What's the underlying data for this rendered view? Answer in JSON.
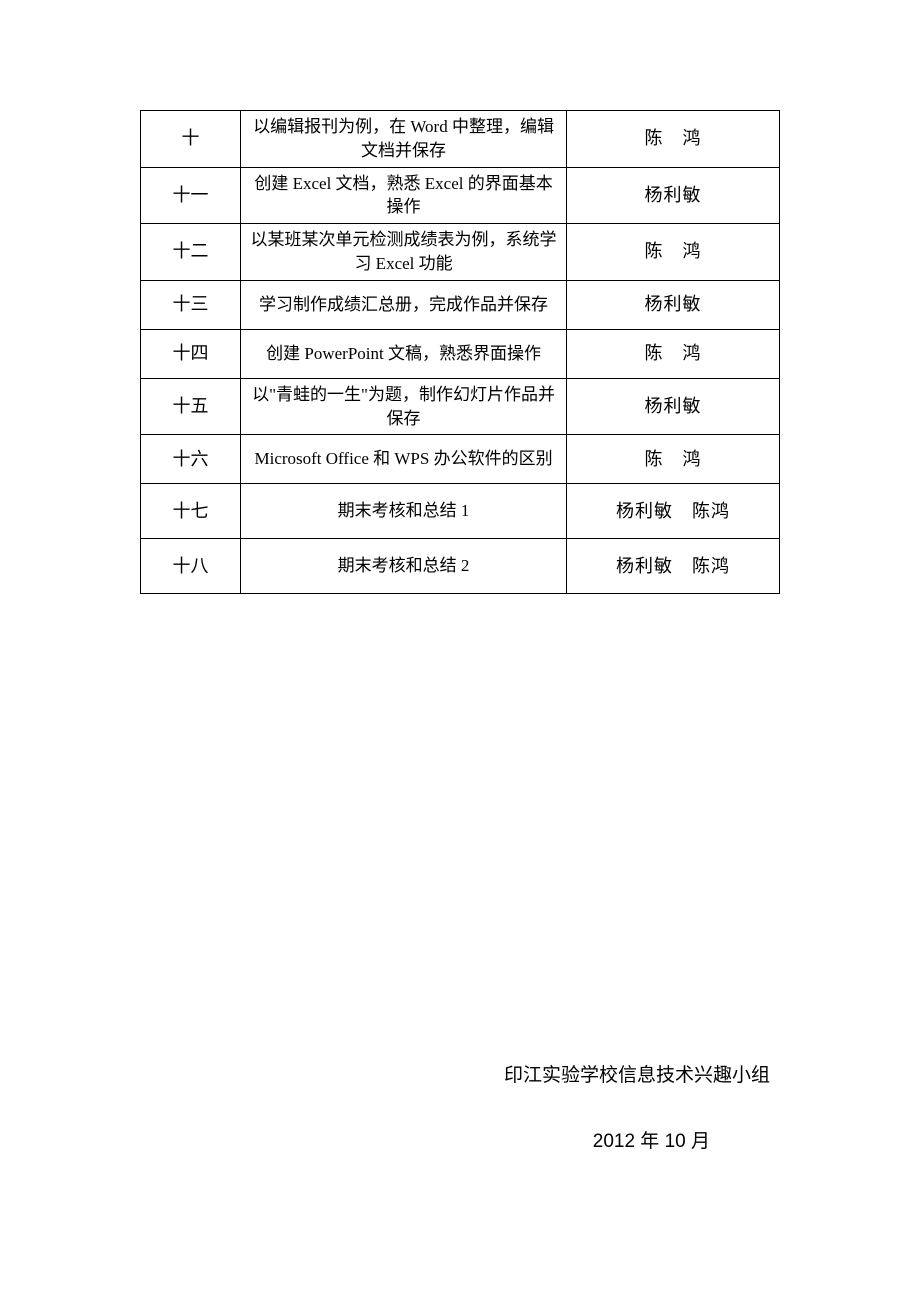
{
  "table": {
    "rows": [
      {
        "week": "十",
        "content": "以编辑报刊为例，在 Word 中整理，编辑文档并保存",
        "teacher": "陈　鸿",
        "row_class": "row-short"
      },
      {
        "week": "十一",
        "content": "创建 Excel 文档，熟悉 Excel 的界面基本操作",
        "teacher": "杨利敏",
        "row_class": "row-short"
      },
      {
        "week": "十二",
        "content": "以某班某次单元检测成绩表为例，系统学习 Excel 功能",
        "teacher": "陈　鸿",
        "row_class": "row-short"
      },
      {
        "week": "十三",
        "content": "学习制作成绩汇总册，完成作品并保存",
        "teacher": "杨利敏",
        "row_class": "row-short"
      },
      {
        "week": "十四",
        "content": "创建 PowerPoint 文稿，熟悉界面操作",
        "teacher": "陈　鸿",
        "row_class": "row-short"
      },
      {
        "week": "十五",
        "content": "以\"青蛙的一生\"为题，制作幻灯片作品并保存",
        "teacher": "杨利敏",
        "row_class": "row-short"
      },
      {
        "week": "十六",
        "content": "Microsoft Office 和 WPS 办公软件的区别",
        "teacher": "陈　鸿",
        "row_class": "row-short"
      },
      {
        "week": "十七",
        "content": "期末考核和总结 1",
        "teacher": "杨利敏　陈鸿",
        "row_class": "row-tall"
      },
      {
        "week": "十八",
        "content": "期末考核和总结 2",
        "teacher": "杨利敏　陈鸿",
        "row_class": "row-tall"
      }
    ],
    "border_color": "#000000",
    "background_color": "#ffffff",
    "font_size_cell": 17,
    "font_size_week": 18,
    "font_size_teacher": 18,
    "col_widths": {
      "week": 94,
      "content": 306,
      "teacher": 200
    }
  },
  "footer": {
    "organization": "印江实验学校信息技术兴趣小组",
    "date": "2012 年 10 月",
    "font_family": "SimHei",
    "font_size": 19
  }
}
